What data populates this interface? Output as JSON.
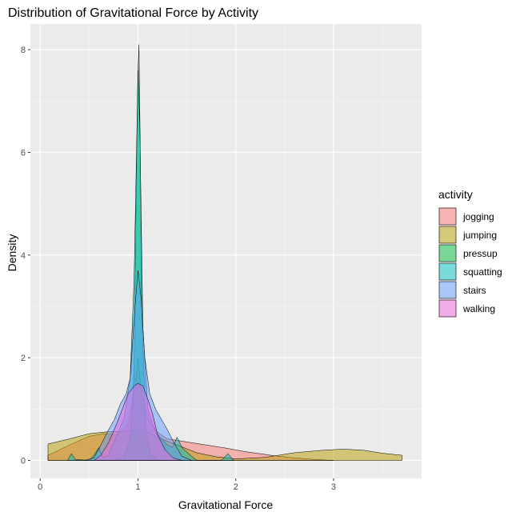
{
  "chart_data": {
    "type": "area",
    "title": "Distribution of Gravitational Force by Activity",
    "xlabel": "Gravitational Force",
    "ylabel": "Density",
    "xlim": [
      -0.1,
      3.9
    ],
    "ylim": [
      -0.35,
      8.5
    ],
    "x_ticks": [
      0,
      1,
      2,
      3
    ],
    "y_ticks": [
      0,
      2,
      4,
      6,
      8
    ],
    "grid": true,
    "legend": {
      "title": "activity",
      "position": "right"
    },
    "series": [
      {
        "name": "jogging",
        "color": "#F8766D",
        "points": [
          [
            0.08,
            0.1
          ],
          [
            0.3,
            0.3
          ],
          [
            0.5,
            0.47
          ],
          [
            0.65,
            0.52
          ],
          [
            0.8,
            0.5
          ],
          [
            0.9,
            0.7
          ],
          [
            0.97,
            1.4
          ],
          [
            1.0,
            2.0
          ],
          [
            1.03,
            1.4
          ],
          [
            1.1,
            0.8
          ],
          [
            1.2,
            0.55
          ],
          [
            1.3,
            0.42
          ],
          [
            1.5,
            0.36
          ],
          [
            1.7,
            0.3
          ],
          [
            1.9,
            0.24
          ],
          [
            2.1,
            0.17
          ],
          [
            2.4,
            0.09
          ],
          [
            2.6,
            0.05
          ],
          [
            2.8,
            0.02
          ],
          [
            3.0,
            0.0
          ]
        ]
      },
      {
        "name": "jumping",
        "color": "#B79F00",
        "points": [
          [
            0.08,
            0.32
          ],
          [
            0.3,
            0.42
          ],
          [
            0.5,
            0.52
          ],
          [
            0.7,
            0.56
          ],
          [
            0.9,
            0.57
          ],
          [
            1.0,
            0.58
          ],
          [
            1.1,
            0.55
          ],
          [
            1.2,
            0.45
          ],
          [
            1.4,
            0.3
          ],
          [
            1.6,
            0.15
          ],
          [
            1.8,
            0.07
          ],
          [
            2.0,
            0.03
          ],
          [
            2.3,
            0.06
          ],
          [
            2.6,
            0.15
          ],
          [
            2.9,
            0.2
          ],
          [
            3.1,
            0.22
          ],
          [
            3.3,
            0.2
          ],
          [
            3.5,
            0.14
          ],
          [
            3.7,
            0.1
          ]
        ]
      },
      {
        "name": "pressup",
        "color": "#00BA38",
        "points": [
          [
            0.75,
            0.0
          ],
          [
            0.85,
            0.05
          ],
          [
            0.92,
            0.4
          ],
          [
            0.96,
            1.7
          ],
          [
            0.98,
            5.0
          ],
          [
            1.0,
            7.6
          ],
          [
            1.01,
            8.1
          ],
          [
            1.02,
            6.6
          ],
          [
            1.04,
            2.8
          ],
          [
            1.08,
            0.6
          ],
          [
            1.13,
            0.1
          ],
          [
            1.22,
            0.0
          ]
        ]
      },
      {
        "name": "squatting",
        "color": "#00BFC4",
        "points": [
          [
            0.28,
            0.0
          ],
          [
            0.32,
            0.13
          ],
          [
            0.36,
            0.02
          ],
          [
            0.5,
            0.0
          ],
          [
            0.55,
            0.1
          ],
          [
            0.6,
            0.25
          ],
          [
            0.64,
            0.05
          ],
          [
            0.7,
            0.1
          ],
          [
            0.74,
            0.3
          ],
          [
            0.8,
            0.55
          ],
          [
            0.86,
            0.85
          ],
          [
            0.92,
            1.6
          ],
          [
            0.96,
            3.5
          ],
          [
            0.98,
            5.5
          ],
          [
            1.0,
            7.6
          ],
          [
            1.02,
            6.4
          ],
          [
            1.05,
            2.6
          ],
          [
            1.1,
            1.0
          ],
          [
            1.18,
            0.55
          ],
          [
            1.3,
            0.3
          ],
          [
            1.35,
            0.25
          ],
          [
            1.4,
            0.45
          ],
          [
            1.45,
            0.25
          ],
          [
            1.55,
            0.08
          ],
          [
            1.6,
            0.0
          ],
          [
            1.85,
            0.0
          ],
          [
            1.92,
            0.13
          ],
          [
            1.98,
            0.0
          ]
        ]
      },
      {
        "name": "stairs",
        "color": "#619CFF",
        "points": [
          [
            0.45,
            0.0
          ],
          [
            0.55,
            0.05
          ],
          [
            0.62,
            0.3
          ],
          [
            0.7,
            0.6
          ],
          [
            0.76,
            0.8
          ],
          [
            0.82,
            1.1
          ],
          [
            0.88,
            1.3
          ],
          [
            0.92,
            1.6
          ],
          [
            0.97,
            3.0
          ],
          [
            1.0,
            3.7
          ],
          [
            1.03,
            3.2
          ],
          [
            1.07,
            2.0
          ],
          [
            1.12,
            1.3
          ],
          [
            1.18,
            1.0
          ],
          [
            1.24,
            0.8
          ],
          [
            1.3,
            0.6
          ],
          [
            1.38,
            0.3
          ],
          [
            1.45,
            0.08
          ],
          [
            1.55,
            0.0
          ]
        ]
      },
      {
        "name": "walking",
        "color": "#F564E3",
        "points": [
          [
            0.55,
            0.0
          ],
          [
            0.62,
            0.1
          ],
          [
            0.7,
            0.35
          ],
          [
            0.78,
            0.7
          ],
          [
            0.84,
            1.0
          ],
          [
            0.9,
            1.3
          ],
          [
            0.96,
            1.45
          ],
          [
            1.0,
            1.5
          ],
          [
            1.05,
            1.45
          ],
          [
            1.1,
            1.2
          ],
          [
            1.15,
            0.9
          ],
          [
            1.2,
            0.5
          ],
          [
            1.28,
            0.2
          ],
          [
            1.36,
            0.05
          ],
          [
            1.45,
            0.0
          ]
        ]
      }
    ]
  }
}
